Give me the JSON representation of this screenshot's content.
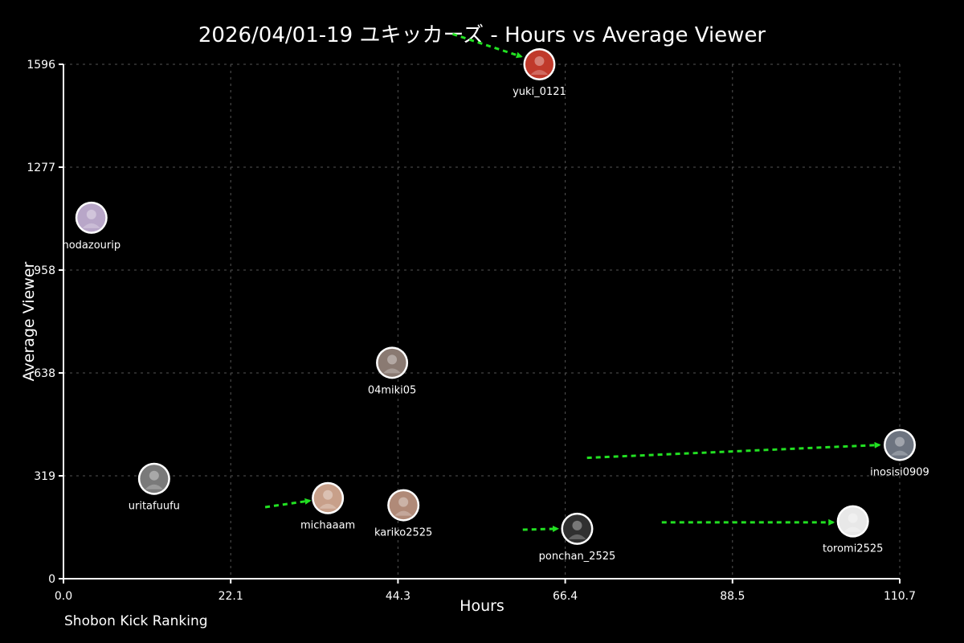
{
  "chart_data": {
    "type": "scatter",
    "title": "2026/04/01-19 ユキッカーズ - Hours vs Average Viewer",
    "xlabel": "Hours",
    "ylabel": "Average Viewer",
    "xlim": [
      0,
      110.7
    ],
    "ylim": [
      0,
      1596
    ],
    "xticks": [
      "0.0",
      "22.1",
      "44.3",
      "66.4",
      "88.5",
      "110.7"
    ],
    "yticks": [
      "0",
      "319",
      "638",
      "958",
      "1277",
      "1596"
    ],
    "grid": true,
    "marker": "avatar image",
    "points": [
      {
        "label": "yuki_0121",
        "x": 63.0,
        "y": 1596,
        "color": "#c0392b"
      },
      {
        "label": "nodazourip",
        "x": 3.7,
        "y": 1120,
        "color": "#b8a6c8"
      },
      {
        "label": "04miki05",
        "x": 43.5,
        "y": 670,
        "color": "#8a7a72"
      },
      {
        "label": "inosisi0909",
        "x": 110.7,
        "y": 415,
        "color": "#6d7480"
      },
      {
        "label": "uritafuufu",
        "x": 12.0,
        "y": 310,
        "color": "#7a7a7a"
      },
      {
        "label": "michaaam",
        "x": 35.0,
        "y": 250,
        "color": "#c8a08a"
      },
      {
        "label": "kariko2525",
        "x": 45.0,
        "y": 228,
        "color": "#b08a78"
      },
      {
        "label": "toromi2525",
        "x": 104.5,
        "y": 178,
        "color": "#e8e8e8"
      },
      {
        "label": "ponchan_2525",
        "x": 68.0,
        "y": 155,
        "color": "#303030"
      }
    ],
    "movement_arrows": [
      {
        "from": [
          51.5,
          1690
        ],
        "to": [
          60.6,
          1620
        ],
        "target": "yuki_0121"
      },
      {
        "from": [
          26.7,
          222
        ],
        "to": [
          32.6,
          242
        ],
        "target": "michaaam"
      },
      {
        "from": [
          60.8,
          152
        ],
        "to": [
          65.4,
          155
        ],
        "target": "ponchan_2525"
      },
      {
        "from": [
          69.3,
          375
        ],
        "to": [
          108.0,
          415
        ],
        "target": "inosisi0909"
      },
      {
        "from": [
          79.2,
          175
        ],
        "to": [
          101.9,
          175
        ],
        "target": "toromi2525"
      }
    ],
    "arrow_color": "#22e022"
  },
  "footer": "Shobon Kick Ranking"
}
